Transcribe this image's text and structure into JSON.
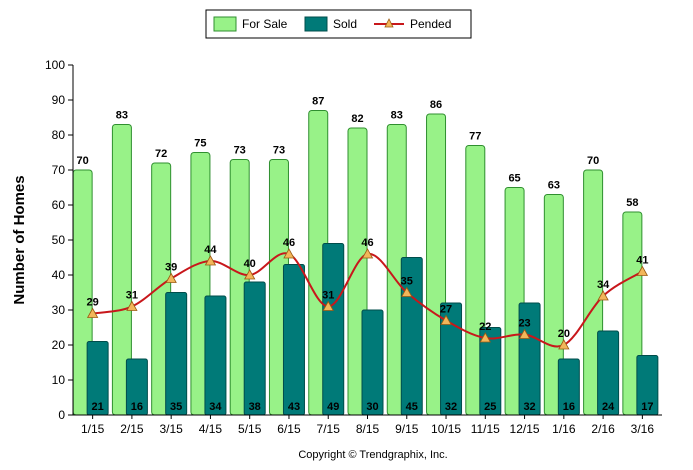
{
  "chart_data": {
    "type": "bar",
    "categories": [
      "1/15",
      "2/15",
      "3/15",
      "4/15",
      "5/15",
      "6/15",
      "7/15",
      "8/15",
      "9/15",
      "10/15",
      "11/15",
      "12/15",
      "1/16",
      "2/16",
      "3/16"
    ],
    "series": [
      {
        "name": "For Sale",
        "kind": "bar",
        "color": "#98f288",
        "edge": "#2f8f2f",
        "values": [
          70,
          83,
          72,
          75,
          73,
          73,
          87,
          82,
          83,
          86,
          77,
          65,
          63,
          70,
          58
        ]
      },
      {
        "name": "Sold",
        "kind": "bar",
        "color": "#007a78",
        "edge": "#004d4b",
        "values": [
          21,
          16,
          35,
          34,
          38,
          43,
          49,
          30,
          45,
          32,
          25,
          32,
          16,
          24,
          17
        ]
      },
      {
        "name": "Pended",
        "kind": "line",
        "color": "#c8171b",
        "marker": "triangle",
        "marker_color": "#f2b65a",
        "values": [
          29,
          31,
          39,
          44,
          40,
          46,
          31,
          46,
          35,
          27,
          22,
          23,
          20,
          34,
          41
        ]
      }
    ],
    "xlabel": "",
    "ylabel": "Number of Homes",
    "ylim": [
      0,
      100
    ],
    "yticks": [
      0,
      10,
      20,
      30,
      40,
      50,
      60,
      70,
      80,
      90,
      100
    ],
    "grid": false,
    "legend_position": "top-center",
    "footer": "Copyright © Trendgraphix, Inc."
  }
}
